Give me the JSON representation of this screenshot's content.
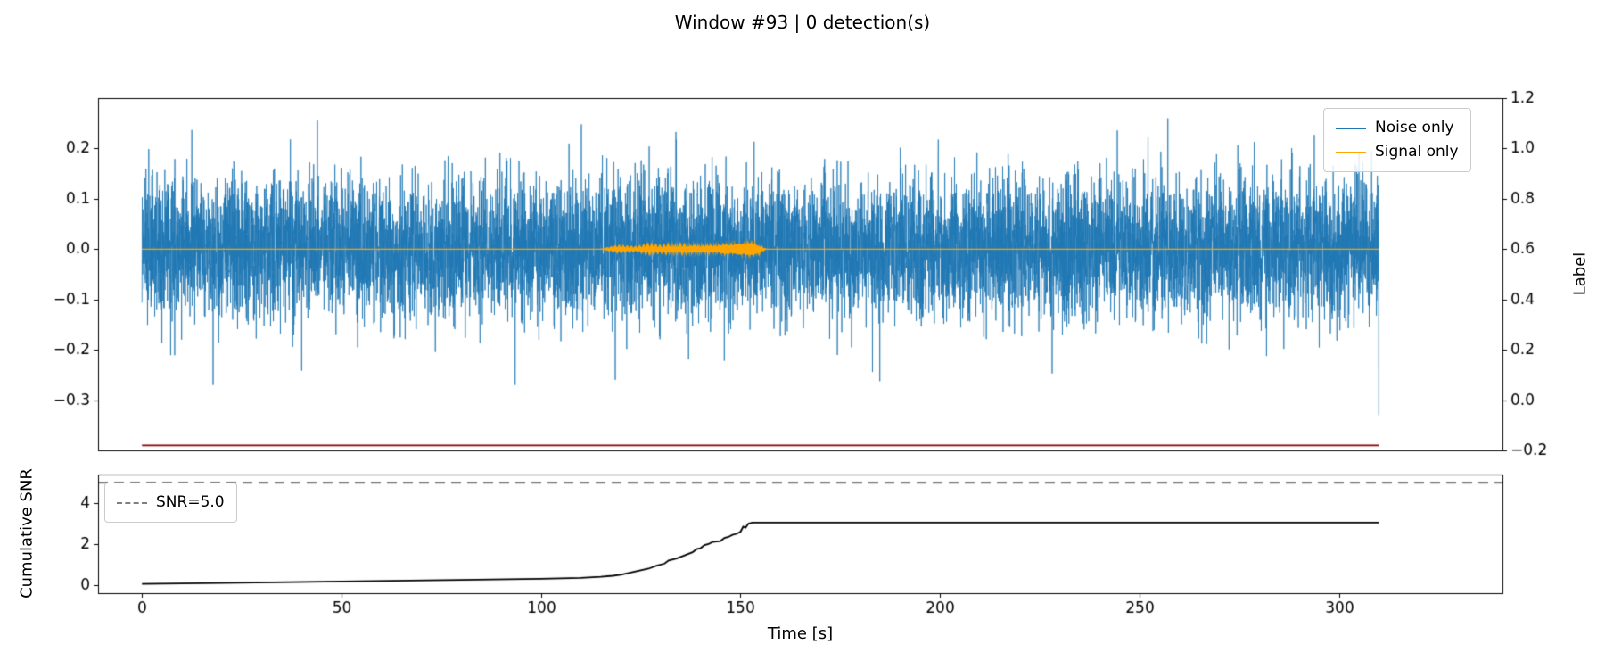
{
  "title": "Window #93 | 0 detection(s)",
  "colors": {
    "noise": "#1f77b4",
    "signal": "#ffa500",
    "label_line": "#8b0000",
    "snr_line": "#000000",
    "threshold": "#7f7f7f",
    "axes": "#000000",
    "legend_border": "#cccccc",
    "background": "#ffffff"
  },
  "chart_data": [
    {
      "type": "line",
      "name": "waveform-panel",
      "xlim": [
        -11,
        341
      ],
      "ylim": [
        -0.4,
        0.3
      ],
      "ytick_values": [
        0.2,
        0.1,
        0.0,
        -0.1,
        -0.2,
        -0.3
      ],
      "ytick_labels": [
        "0.2",
        "0.1",
        "0.0",
        "−0.1",
        "−0.2",
        "−0.3"
      ],
      "grid": false,
      "right_axis": {
        "label": "Label",
        "ylim": [
          -0.2,
          1.2
        ],
        "tick_values": [
          1.2,
          1.0,
          0.8,
          0.6,
          0.4,
          0.2,
          0.0,
          -0.2
        ],
        "tick_labels": [
          "1.2",
          "1.0",
          "0.8",
          "0.6",
          "0.4",
          "0.2",
          "0.0",
          "−0.2"
        ]
      },
      "legend": {
        "position": "upper right",
        "entries": [
          {
            "label": "Noise only",
            "color": "#1f77b4"
          },
          {
            "label": "Signal only",
            "color": "#ffa500"
          }
        ]
      },
      "series": [
        {
          "name": "Noise only",
          "kind": "gaussian-noise",
          "color": "#1f77b4",
          "t_range": [
            0,
            310
          ],
          "std": 0.068,
          "observed_band": [
            -0.16,
            0.16
          ],
          "observed_peak_max": 0.25,
          "observed_peak_min": -0.33,
          "end_spike": -0.33,
          "seed": 93,
          "n_samples": 9300
        },
        {
          "name": "Signal only",
          "kind": "modulated-burst",
          "color": "#ffa500",
          "baseline": 0.0,
          "burst_range": [
            115,
            157
          ],
          "carrier_rad_per_s": 44,
          "envelope": [
            [
              0,
              0
            ],
            [
              115,
              0
            ],
            [
              119,
              0.003
            ],
            [
              124,
              0.002
            ],
            [
              127,
              0.0045
            ],
            [
              130,
              0.003
            ],
            [
              133,
              0.005
            ],
            [
              136,
              0.004
            ],
            [
              138,
              0.0065
            ],
            [
              140,
              0.005
            ],
            [
              142,
              0.007
            ],
            [
              144,
              0.0055
            ],
            [
              146,
              0.009
            ],
            [
              148,
              0.0075
            ],
            [
              149.5,
              0.011
            ],
            [
              151,
              0.009
            ],
            [
              152,
              0.012
            ],
            [
              153.5,
              0.011
            ],
            [
              155,
              0.003
            ],
            [
              156.5,
              0
            ],
            [
              310,
              0
            ]
          ]
        },
        {
          "name": "label-line",
          "kind": "hline",
          "color": "#8b0000",
          "y": -0.39,
          "x_range": [
            0,
            310
          ]
        }
      ]
    },
    {
      "type": "line",
      "name": "cumulative-snr-panel",
      "xlabel": "Time [s]",
      "ylabel": "Cumulative SNR",
      "xlim": [
        -11,
        341
      ],
      "ylim": [
        -0.4,
        5.4
      ],
      "xtick_values": [
        0,
        50,
        100,
        150,
        200,
        250,
        300
      ],
      "xtick_labels": [
        "0",
        "50",
        "100",
        "150",
        "200",
        "250",
        "300"
      ],
      "ytick_values": [
        0,
        2,
        4
      ],
      "ytick_labels": [
        "0",
        "2",
        "4"
      ],
      "grid": false,
      "threshold": {
        "value": 5.0,
        "label": "SNR=5.0",
        "color": "#7f7f7f",
        "style": "dashed"
      },
      "legend": {
        "position": "upper left",
        "entries": [
          {
            "label": "SNR=5.0",
            "color": "#7f7f7f",
            "dashed": true
          }
        ]
      },
      "series": [
        {
          "name": "Cumulative SNR",
          "color": "#000000",
          "points": [
            [
              0,
              0.05
            ],
            [
              20,
              0.1
            ],
            [
              50,
              0.17
            ],
            [
              80,
              0.25
            ],
            [
              100,
              0.3
            ],
            [
              110,
              0.35
            ],
            [
              115,
              0.4
            ],
            [
              118,
              0.45
            ],
            [
              120,
              0.5
            ],
            [
              123,
              0.63
            ],
            [
              125,
              0.72
            ],
            [
              127,
              0.8
            ],
            [
              129,
              0.95
            ],
            [
              131,
              1.05
            ],
            [
              132,
              1.2
            ],
            [
              134,
              1.3
            ],
            [
              136,
              1.45
            ],
            [
              138,
              1.6
            ],
            [
              139,
              1.75
            ],
            [
              140,
              1.8
            ],
            [
              141,
              1.95
            ],
            [
              142,
              2.0
            ],
            [
              143,
              2.1
            ],
            [
              145,
              2.15
            ],
            [
              146,
              2.3
            ],
            [
              147,
              2.35
            ],
            [
              148,
              2.45
            ],
            [
              149,
              2.5
            ],
            [
              150,
              2.6
            ],
            [
              150.7,
              2.85
            ],
            [
              151.3,
              2.8
            ],
            [
              152,
              3.0
            ],
            [
              153,
              3.05
            ],
            [
              310,
              3.05
            ]
          ]
        }
      ]
    }
  ]
}
